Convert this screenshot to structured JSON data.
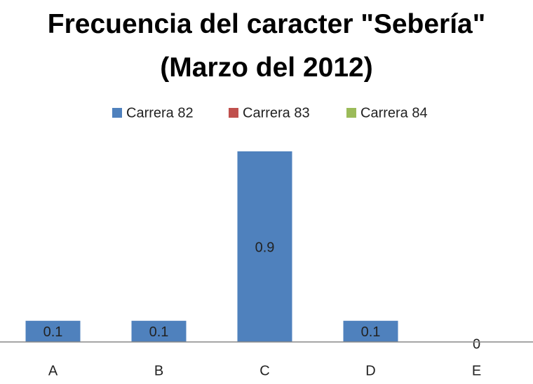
{
  "chart_data": {
    "type": "bar",
    "title": "Frecuencia del caracter \"Sebería\" (Marzo del 2012)",
    "categories": [
      "A",
      "B",
      "C",
      "D",
      "E"
    ],
    "series": [
      {
        "name": "Carrera 82",
        "color": "#4f81bd",
        "values": [
          0.1,
          0.1,
          0.9,
          0.1,
          0
        ]
      },
      {
        "name": "Carrera 83",
        "color": "#c0504d",
        "values": [
          null,
          null,
          null,
          null,
          null
        ]
      },
      {
        "name": "Carrera 84",
        "color": "#9bbb59",
        "values": [
          null,
          null,
          null,
          null,
          null
        ]
      }
    ],
    "data_labels": true,
    "legend": "top"
  }
}
